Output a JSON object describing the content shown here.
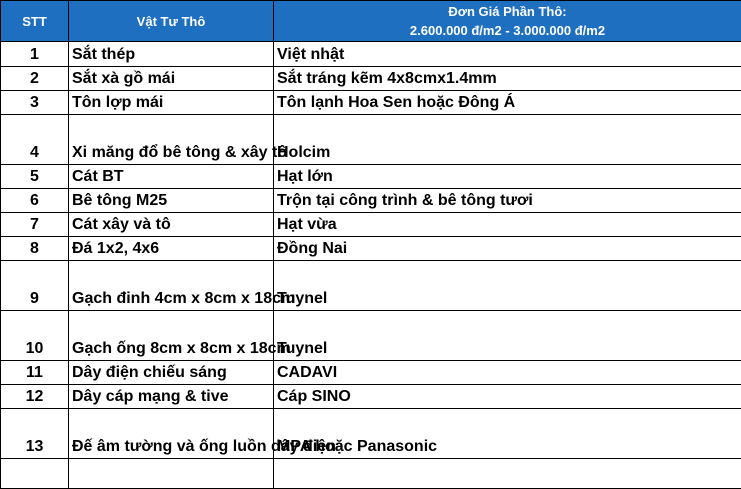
{
  "header": {
    "stt": "STT",
    "material": "Vật Tư Thô",
    "price_line1": "Đơn Giá Phần Thô:",
    "price_line2": "2.600.000 đ/m2 - 3.000.000 đ/m2"
  },
  "rows": [
    {
      "stt": "1",
      "material": "Sắt thép",
      "brand": "Việt nhật"
    },
    {
      "stt": "2",
      "material": "Sắt xà gồ mái",
      "brand": "Sắt tráng kẽm 4x8cmx1.4mm"
    },
    {
      "stt": "3",
      "material": "Tôn lợp mái",
      "brand": "Tôn lạnh Hoa Sen hoặc Đông Á"
    },
    {
      "stt": "4",
      "material": "Xi măng đổ bê tông & xây tô",
      "brand": "Holcim"
    },
    {
      "stt": "5",
      "material": "Cát BT",
      "brand": "Hạt lớn"
    },
    {
      "stt": "6",
      "material": "Bê tông M25",
      "brand": "Trộn tại công trình & bê tông tươi"
    },
    {
      "stt": "7",
      "material": "Cát xây và tô",
      "brand": "Hạt vừa"
    },
    {
      "stt": "8",
      "material": "Đá 1x2, 4x6",
      "brand": "Đồng Nai"
    },
    {
      "stt": "9",
      "material": "Gạch đinh 4cm x 8cm x 18cm",
      "brand": "Tuynel"
    },
    {
      "stt": "10",
      "material": "Gạch ống 8cm x 8cm x 18cm",
      "brand": "Tuynel"
    },
    {
      "stt": "11",
      "material": "Dây điện chiếu sáng",
      "brand": "CADAVI"
    },
    {
      "stt": "12",
      "material": "Dây cáp mạng & tive",
      "brand": "Cáp SINO"
    },
    {
      "stt": "13",
      "material": "Đế âm tường và ống luồn dây điện",
      "brand": "MPA hoặc Panasonic"
    },
    {
      "stt": "",
      "material": "",
      "brand": ""
    }
  ],
  "colors": {
    "header_bg": "#1f6fc0",
    "header_text": "#ffffff",
    "grid": "#000000"
  }
}
